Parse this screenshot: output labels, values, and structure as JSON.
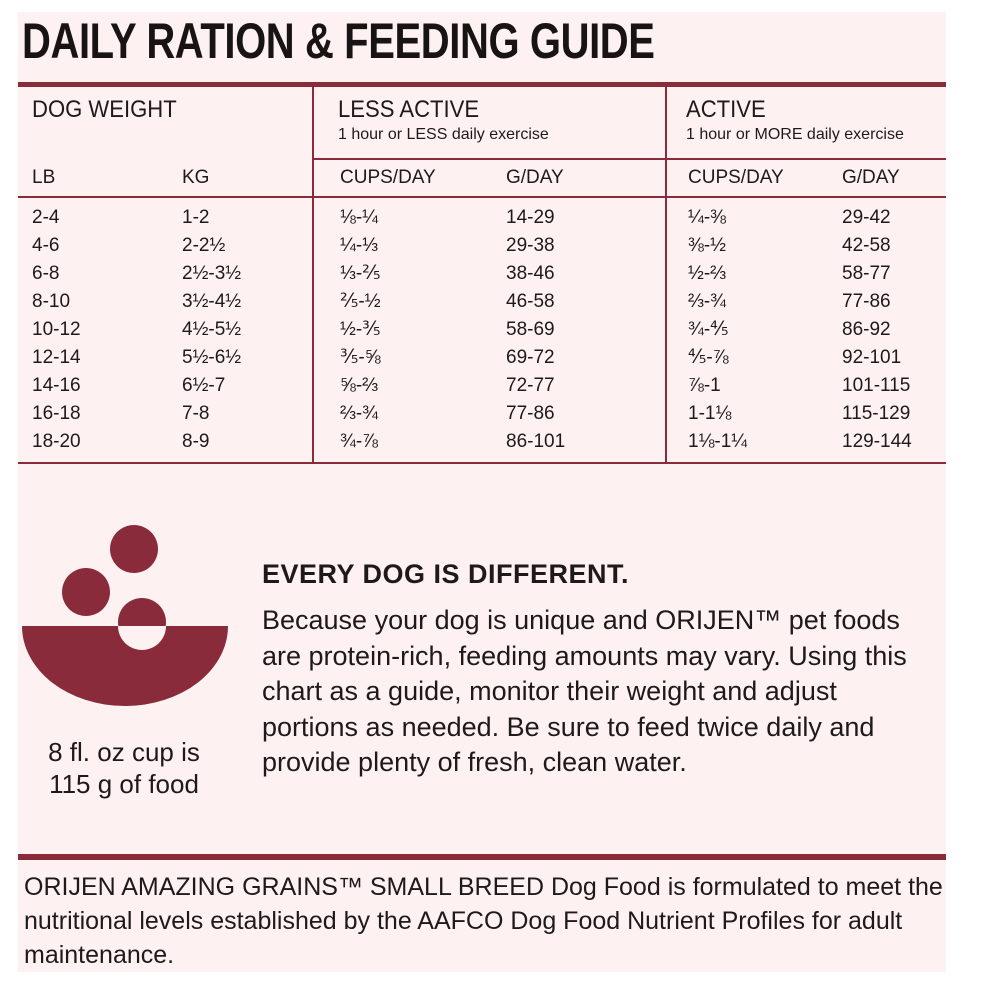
{
  "title": "DAILY RATION & FEEDING GUIDE",
  "table": {
    "dog_weight_header": "DOG WEIGHT",
    "less_active_header": "LESS ACTIVE",
    "less_active_sub": "1 hour or LESS daily exercise",
    "active_header": "ACTIVE",
    "active_sub": "1 hour or MORE daily exercise",
    "columns": [
      "LB",
      "KG",
      "CUPS/DAY",
      "G/DAY",
      "CUPS/DAY",
      "G/DAY"
    ],
    "rows": [
      [
        "2-4",
        "1-2",
        "⅛-¼",
        "14-29",
        "¼-⅜",
        "29-42"
      ],
      [
        "4-6",
        "2-2½",
        "¼-⅓",
        "29-38",
        "⅜-½",
        "42-58"
      ],
      [
        "6-8",
        "2½-3½",
        "⅓-⅖",
        "38-46",
        "½-⅔",
        "58-77"
      ],
      [
        "8-10",
        "3½-4½",
        "⅖-½",
        "46-58",
        "⅔-¾",
        "77-86"
      ],
      [
        "10-12",
        "4½-5½",
        "½-⅗",
        "58-69",
        "¾-⅘",
        "86-92"
      ],
      [
        "12-14",
        "5½-6½",
        "⅗-⅝",
        "69-72",
        "⅘-⅞",
        "92-101"
      ],
      [
        "14-16",
        "6½-7",
        "⅝-⅔",
        "72-77",
        "⅞-1",
        "101-115"
      ],
      [
        "16-18",
        "7-8",
        "⅔-¾",
        "77-86",
        "1-1⅛",
        "115-129"
      ],
      [
        "18-20",
        "8-9",
        "¾-⅞",
        "86-101",
        "1⅛-1¼",
        "129-144"
      ]
    ]
  },
  "cup_note_line1": "8 fl. oz cup is",
  "cup_note_line2": "115 g of food",
  "diff_title": "EVERY DOG IS DIFFERENT.",
  "diff_body": "Because your dog is unique and ORIJEN™ pet foods are protein-rich, feeding amounts may vary. Using this chart as a guide, monitor their weight and adjust portions as needed. Be sure to feed twice daily and provide plenty of fresh, clean water.",
  "footer": "ORIJEN AMAZING GRAINS™ SMALL BREED Dog Food is formulated to meet the nutritional levels established by the AAFCO Dog Food Nutrient Profiles for adult maintenance.",
  "colors": {
    "accent": "#8a2b3b",
    "background": "#fdf1f1",
    "text": "#1e1a1a"
  },
  "icons": [
    "food-bowl-icon"
  ]
}
